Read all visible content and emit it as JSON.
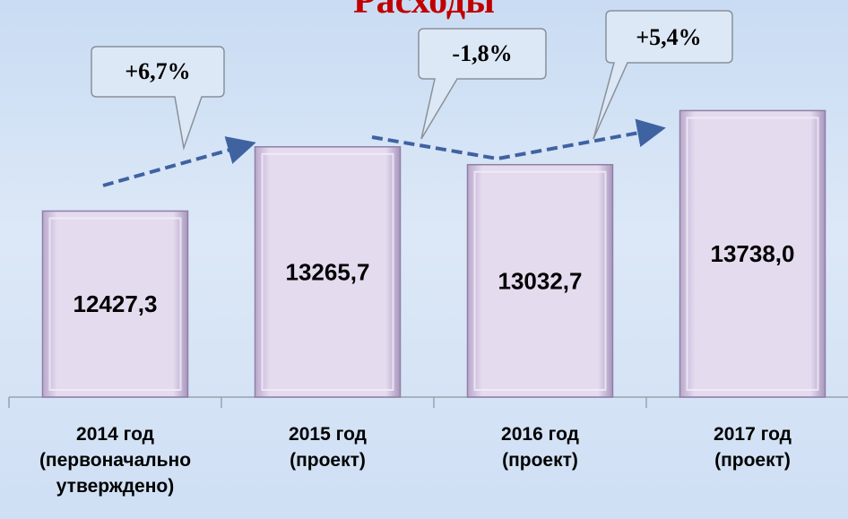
{
  "chart_data": {
    "type": "bar",
    "title": "Расходы",
    "categories": [
      "2014 год\n(первоначально\nутверждено)",
      "2015 год\n(проект)",
      "2016 год\n(проект)",
      "2017 год\n(проект)"
    ],
    "values": [
      12427.3,
      13265.7,
      13032.7,
      13738.0
    ],
    "value_labels": [
      "12427,3",
      "13265,7",
      "13032,7",
      "13738,0"
    ],
    "color": "#dcd0ea",
    "ylim": [
      10000,
      14000
    ],
    "annotations": [
      "+6,7%",
      "-1,8%",
      "+5,4%"
    ]
  }
}
